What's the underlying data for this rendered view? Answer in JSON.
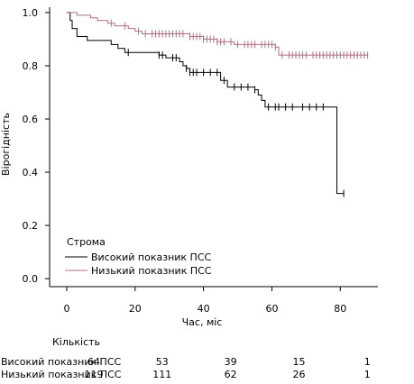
{
  "chart_data": {
    "type": "line",
    "subtype": "kaplan-meier",
    "xlabel": "Час, міс",
    "ylabel": "Вірогідність",
    "xlim": [
      -5,
      91
    ],
    "ylim": [
      -0.03,
      1.02
    ],
    "x_ticks": [
      0,
      20,
      40,
      60,
      80
    ],
    "y_ticks": [
      0.0,
      0.2,
      0.4,
      0.6,
      0.8,
      1.0
    ],
    "y_tick_labels": [
      "0.0",
      "0.2",
      "0.4",
      "0.6",
      "0.8",
      "1.0"
    ],
    "grid": false,
    "legend": {
      "title": "Строма",
      "placement": "bottom-left",
      "entries": [
        "Високий показник ПСС",
        "Низький показник ПСС"
      ]
    },
    "series": [
      {
        "name": "Високий показник ПСС",
        "color": "#000000",
        "steps": [
          [
            0,
            1.0
          ],
          [
            1,
            0.97
          ],
          [
            1.6,
            0.94
          ],
          [
            3,
            0.91
          ],
          [
            6,
            0.895
          ],
          [
            13,
            0.88
          ],
          [
            15,
            0.865
          ],
          [
            17,
            0.85
          ],
          [
            27,
            0.84
          ],
          [
            29,
            0.83
          ],
          [
            33,
            0.815
          ],
          [
            34,
            0.8
          ],
          [
            35,
            0.79
          ],
          [
            36,
            0.775
          ],
          [
            45,
            0.745
          ],
          [
            47,
            0.72
          ],
          [
            55,
            0.71
          ],
          [
            56,
            0.69
          ],
          [
            57,
            0.67
          ],
          [
            58,
            0.645
          ],
          [
            79,
            0.32
          ],
          [
            81,
            0.32
          ]
        ],
        "censored": [
          18,
          27,
          28,
          31,
          32,
          35,
          36,
          37,
          38,
          40,
          42,
          44,
          46,
          49,
          51,
          53,
          55,
          59,
          61,
          62,
          64,
          66,
          69,
          71,
          73,
          75,
          81
        ]
      },
      {
        "name": "Низький показник ПСС",
        "color": "#b07080",
        "steps": [
          [
            0,
            1.0
          ],
          [
            3,
            0.99
          ],
          [
            7,
            0.98
          ],
          [
            9,
            0.97
          ],
          [
            12,
            0.96
          ],
          [
            14,
            0.95
          ],
          [
            18,
            0.94
          ],
          [
            20,
            0.93
          ],
          [
            22,
            0.92
          ],
          [
            36,
            0.91
          ],
          [
            40,
            0.9
          ],
          [
            44,
            0.89
          ],
          [
            49,
            0.88
          ],
          [
            61,
            0.87
          ],
          [
            62,
            0.84
          ],
          [
            88,
            0.84
          ]
        ],
        "censored": [
          13,
          17,
          21,
          23,
          25,
          26,
          27,
          28,
          29,
          30,
          31,
          32,
          33,
          34,
          36,
          37,
          38,
          39,
          40,
          41,
          42,
          43,
          44,
          45,
          46,
          48,
          50,
          52,
          53,
          54,
          55,
          57,
          58,
          59,
          60,
          61,
          63,
          65,
          66,
          67,
          68,
          69,
          70,
          72,
          73,
          74,
          75,
          76,
          77,
          78,
          79,
          80,
          81,
          82,
          83,
          84,
          85,
          86,
          87,
          88
        ]
      }
    ],
    "risk_table": {
      "title": "Кількість",
      "times": [
        0,
        20,
        40,
        60,
        80
      ],
      "rows": [
        {
          "label": "Високий показник ПСС",
          "values": [
            "64",
            "53",
            "39",
            "15",
            "1"
          ]
        },
        {
          "label": "Низький показник ПСС",
          "values": [
            "119",
            "111",
            "62",
            "26",
            "1"
          ]
        }
      ]
    }
  }
}
